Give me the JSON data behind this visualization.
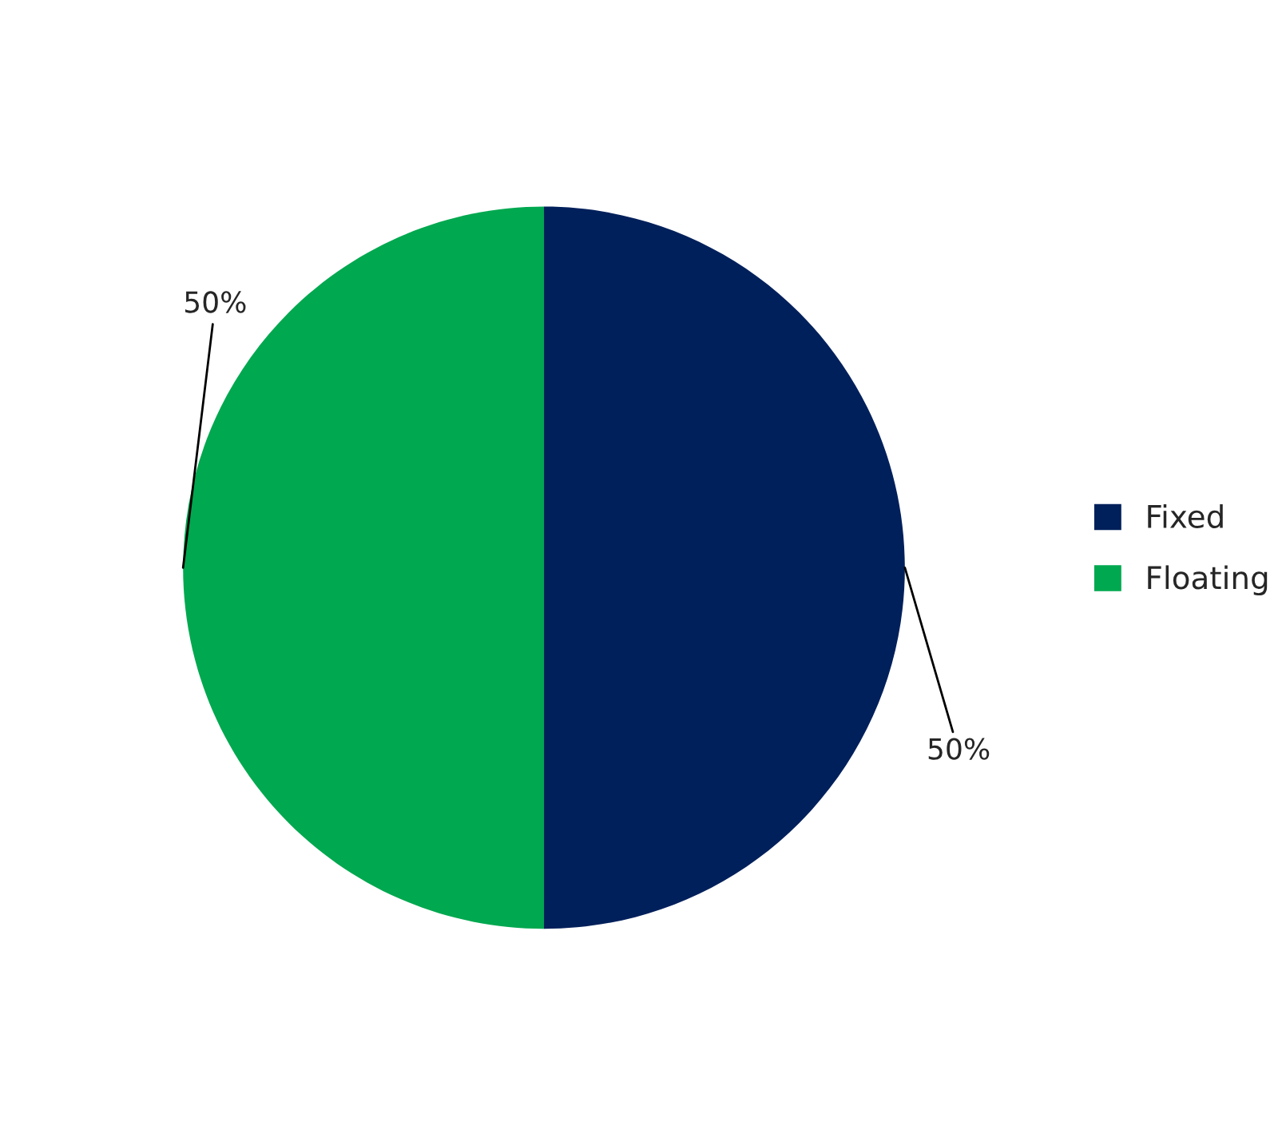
{
  "chart_data": {
    "type": "pie",
    "categories": [
      "Fixed",
      "Floating"
    ],
    "values": [
      50,
      50
    ],
    "colors": [
      "#00205b",
      "#00a84f"
    ],
    "value_labels": [
      "50%",
      "50%"
    ],
    "legend": "right"
  }
}
